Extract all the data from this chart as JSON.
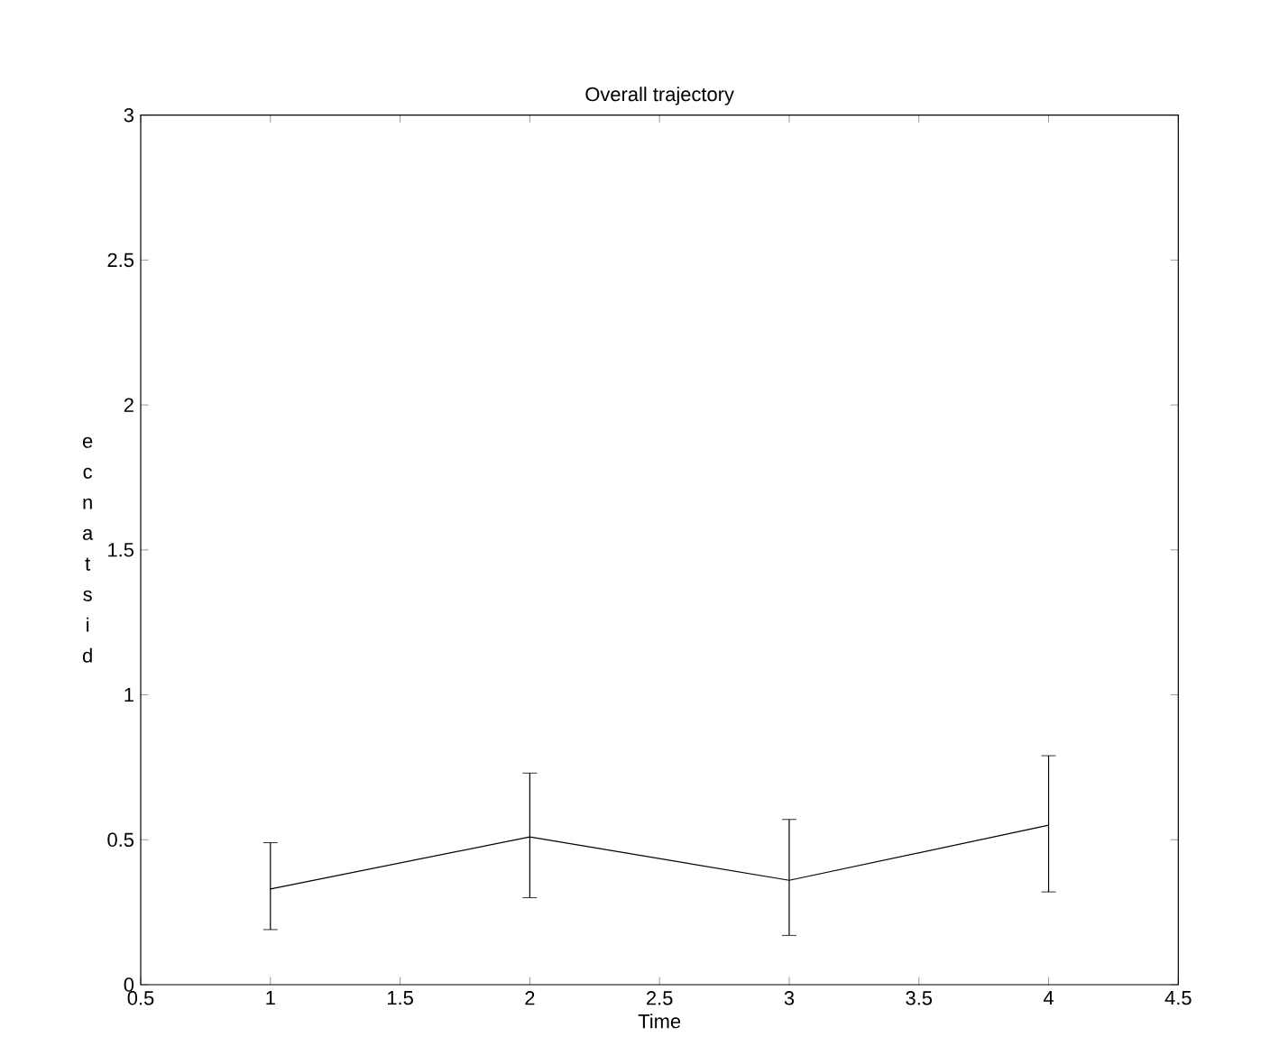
{
  "chart_data": {
    "type": "line",
    "title": "Overall trajectory",
    "xlabel": "Time",
    "ylabel": "ecnatsid",
    "x": [
      1,
      2,
      3,
      4
    ],
    "series": [
      {
        "color": "#000000",
        "values": [
          0.33,
          0.51,
          0.36,
          0.55
        ],
        "errors": [
          [
            0.19,
            0.49
          ],
          [
            0.3,
            0.73
          ],
          [
            0.17,
            0.57
          ],
          [
            0.32,
            0.79
          ]
        ]
      }
    ],
    "xlim": [
      0.5,
      4.5
    ],
    "xticks": [
      0.5,
      1,
      1.5,
      2,
      2.5,
      3,
      3.5,
      4,
      4.5
    ],
    "ylim": [
      0,
      3
    ],
    "yticks": [
      0,
      0.5,
      1,
      1.5,
      2,
      2.5,
      3
    ],
    "grid": false,
    "marker": "none",
    "line_style": "solid"
  }
}
